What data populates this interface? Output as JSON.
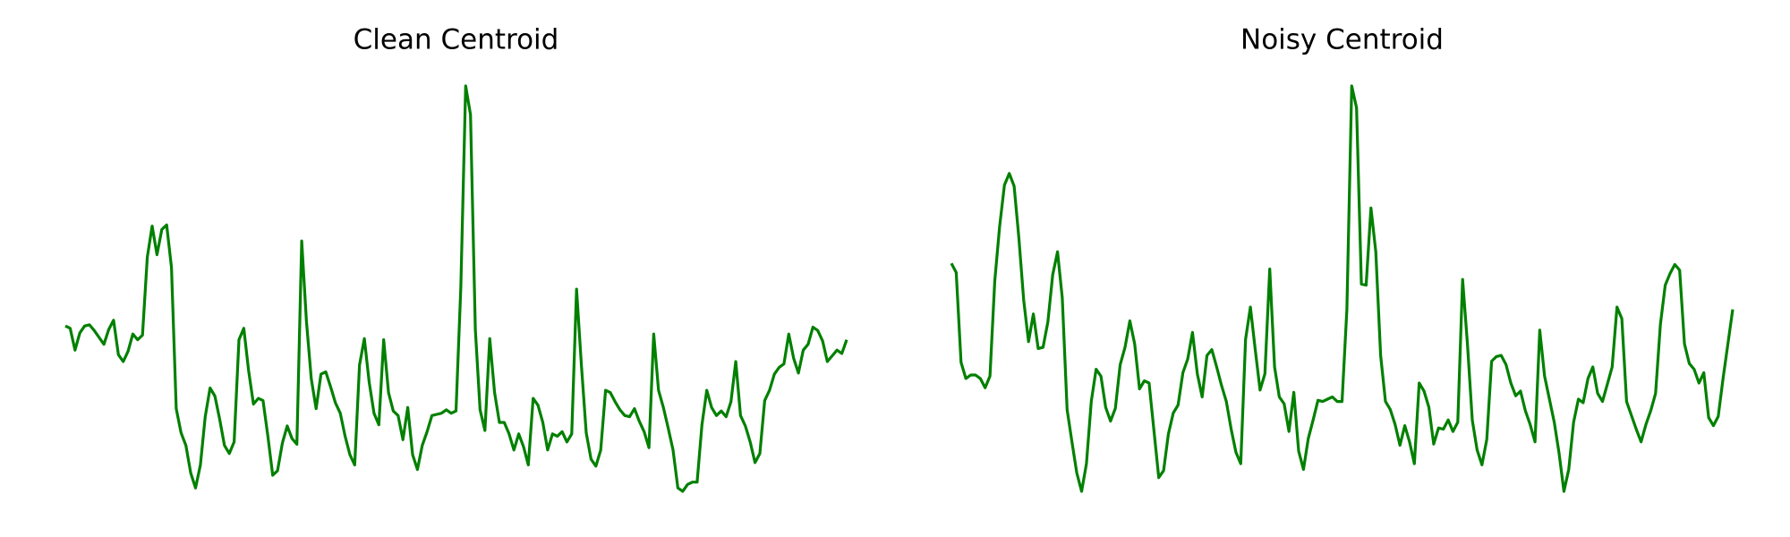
{
  "chart_data": [
    {
      "type": "line",
      "title": "Clean Centroid",
      "color": "#008000",
      "values": [
        156,
        154,
        135,
        150,
        156,
        157,
        152,
        146,
        140,
        153,
        161,
        131,
        125,
        134,
        149,
        144,
        148,
        216,
        243,
        218,
        240,
        244,
        207,
        84,
        63,
        52,
        28,
        15,
        35,
        77,
        102,
        95,
        75,
        52,
        45,
        55,
        144,
        154,
        117,
        88,
        93,
        91,
        60,
        26,
        30,
        54,
        69,
        58,
        53,
        230,
        160,
        110,
        84,
        114,
        116,
        103,
        89,
        80,
        60,
        44,
        35,
        122,
        145,
        107,
        80,
        70,
        144,
        98,
        82,
        78,
        57,
        85,
        44,
        31,
        52,
        64,
        78,
        79,
        80,
        83,
        80,
        82,
        190,
        365,
        340,
        153,
        83,
        65,
        145,
        98,
        72,
        72,
        62,
        48,
        62,
        51,
        35,
        93,
        87,
        72,
        48,
        62,
        60,
        64,
        55,
        62,
        188,
        122,
        63,
        40,
        34,
        48,
        100,
        98,
        90,
        83,
        78,
        77,
        84,
        73,
        64,
        50,
        149,
        100,
        85,
        67,
        48,
        15,
        12,
        18,
        20,
        20,
        70,
        100,
        85,
        78,
        82,
        77,
        90,
        125,
        78,
        69,
        55,
        37,
        45,
        91,
        100,
        114,
        120,
        123,
        149,
        128,
        115,
        135,
        140,
        155,
        152,
        143,
        125,
        130,
        135,
        132,
        144
      ]
    },
    {
      "type": "line",
      "title": "Noisy Centroid",
      "color": "#008000",
      "values": [
        210,
        202,
        124,
        110,
        113,
        113,
        110,
        102,
        112,
        195,
        242,
        278,
        288,
        277,
        232,
        178,
        142,
        166,
        136,
        137,
        159,
        200,
        220,
        180,
        83,
        55,
        28,
        12,
        36,
        90,
        118,
        112,
        85,
        73,
        84,
        122,
        137,
        160,
        140,
        101,
        108,
        106,
        65,
        24,
        30,
        62,
        80,
        87,
        115,
        127,
        150,
        114,
        94,
        130,
        135,
        120,
        104,
        90,
        66,
        46,
        36,
        144,
        172,
        135,
        100,
        114,
        205,
        120,
        94,
        88,
        64,
        98,
        47,
        31,
        58,
        74,
        91,
        90,
        92,
        94,
        90,
        90,
        170,
        364,
        345,
        192,
        191,
        258,
        220,
        130,
        90,
        83,
        70,
        52,
        69,
        55,
        36,
        106,
        99,
        85,
        53,
        67,
        66,
        74,
        64,
        72,
        196,
        140,
        74,
        48,
        35,
        57,
        125,
        129,
        130,
        122,
        106,
        95,
        99,
        82,
        70,
        55,
        152,
        112,
        92,
        72,
        45,
        12,
        31,
        72,
        92,
        89,
        110,
        120,
        97,
        90,
        105,
        120,
        172,
        162,
        90,
        78,
        66,
        55,
        70,
        82,
        97,
        157,
        191,
        201,
        209,
        204,
        140,
        123,
        118,
        106,
        115,
        76,
        69,
        77,
        110,
        140,
        170
      ]
    }
  ]
}
